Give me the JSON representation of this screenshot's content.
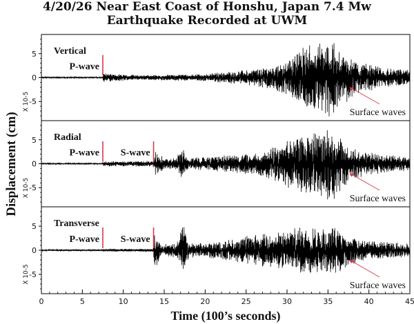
{
  "chart_data": {
    "type": "line",
    "title": [
      "4/20/26 Near East Coast of Honshu, Japan 7.4 Mw",
      "Earthquake Recorded at UWM"
    ],
    "xlabel": "Time (100’s seconds)",
    "ylabel": "Displacement (cm)",
    "xlim": [
      0,
      45
    ],
    "ylim": [
      -9,
      9
    ],
    "x_ticks": [
      0,
      5,
      10,
      15,
      20,
      25,
      30,
      35,
      40,
      45
    ],
    "y_ticks": [
      -5,
      0,
      5
    ],
    "y_multiplier_label": "X 10-5",
    "line_color": "#000000",
    "marker_color": "#d9394a",
    "panels": [
      {
        "name": "Vertical",
        "p_wave": {
          "label": "P-wave",
          "time": 7.5
        },
        "surface_label": "Surface waves",
        "envelope": [
          [
            0,
            0.15
          ],
          [
            7.4,
            0.15
          ],
          [
            7.6,
            1.0
          ],
          [
            9,
            0.8
          ],
          [
            12,
            0.5
          ],
          [
            15,
            0.6
          ],
          [
            20,
            0.8
          ],
          [
            25,
            1.6
          ],
          [
            28,
            2.5
          ],
          [
            30,
            4.0
          ],
          [
            32,
            6.5
          ],
          [
            34,
            7.5
          ],
          [
            35.5,
            9.0
          ],
          [
            36.5,
            6.5
          ],
          [
            38,
            4.0
          ],
          [
            40,
            2.8
          ],
          [
            42,
            2.0
          ],
          [
            45,
            1.6
          ]
        ]
      },
      {
        "name": "Radial",
        "p_wave": {
          "label": "P-wave",
          "time": 7.5
        },
        "s_wave": {
          "label": "S-wave",
          "time": 13.7
        },
        "surface_label": "Surface waves",
        "envelope": [
          [
            0,
            0.15
          ],
          [
            7.4,
            0.15
          ],
          [
            7.6,
            0.6
          ],
          [
            13.6,
            0.6
          ],
          [
            13.9,
            3.0
          ],
          [
            15,
            1.2
          ],
          [
            16.5,
            1.3
          ],
          [
            17.2,
            4.2
          ],
          [
            17.8,
            1.3
          ],
          [
            20,
            1.5
          ],
          [
            25,
            2.2
          ],
          [
            28,
            3.2
          ],
          [
            30,
            5.0
          ],
          [
            32,
            6.5
          ],
          [
            34,
            7.0
          ],
          [
            35.5,
            8.5
          ],
          [
            36.5,
            5.8
          ],
          [
            38,
            3.5
          ],
          [
            40,
            2.5
          ],
          [
            42,
            2.0
          ],
          [
            45,
            1.5
          ]
        ]
      },
      {
        "name": "Transverse",
        "p_wave": {
          "label": "P-wave",
          "time": 7.5
        },
        "s_wave": {
          "label": "S-wave",
          "time": 13.7
        },
        "surface_label": "Surface waves",
        "envelope": [
          [
            0,
            0.15
          ],
          [
            7.4,
            0.15
          ],
          [
            7.6,
            0.3
          ],
          [
            13.6,
            0.3
          ],
          [
            13.9,
            4.5
          ],
          [
            14.5,
            1.2
          ],
          [
            16.5,
            1.5
          ],
          [
            17.3,
            5.8
          ],
          [
            18,
            1.5
          ],
          [
            20,
            1.5
          ],
          [
            22,
            2.0
          ],
          [
            24,
            2.5
          ],
          [
            26,
            3.5
          ],
          [
            28,
            3.5
          ],
          [
            30,
            4.5
          ],
          [
            32,
            4.8
          ],
          [
            34,
            5.0
          ],
          [
            35.5,
            5.3
          ],
          [
            36.5,
            4.5
          ],
          [
            38,
            3.0
          ],
          [
            40,
            2.0
          ],
          [
            42,
            1.8
          ],
          [
            45,
            1.5
          ]
        ]
      }
    ]
  }
}
